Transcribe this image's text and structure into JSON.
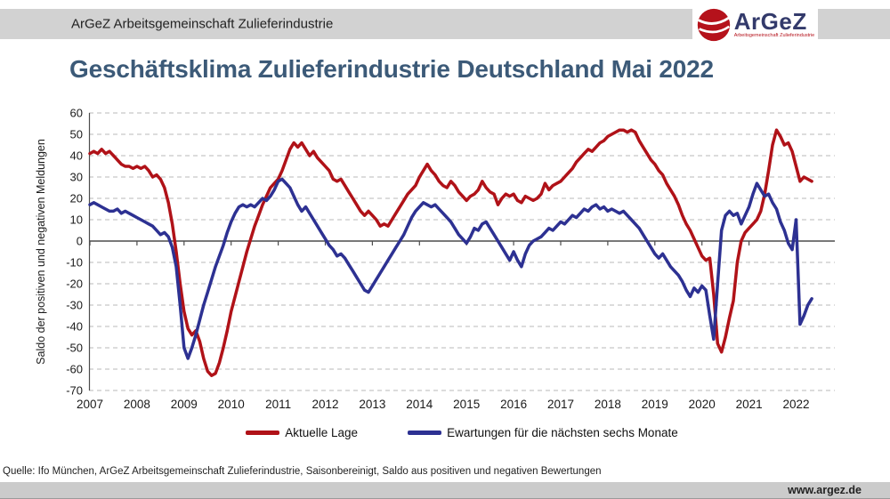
{
  "header": {
    "bar_text": "ArGeZ Arbeitsgemeinschaft Zulieferindustrie",
    "logo": {
      "name": "ArGeZ",
      "subtitle": "Arbeitsgemeinschaft Zulieferindustrie"
    }
  },
  "title": "Geschäftsklima Zulieferindustrie Deutschland Mai 2022",
  "source_line": "Quelle: Ifo München, ArGeZ Arbeitsgemeinschaft Zulieferindustrie, Saisonbereinigt, Saldo aus positiven und negativen Bewertungen",
  "footer": {
    "website": "www.argez.de"
  },
  "colors": {
    "red": "#b01218",
    "blue": "#2d3192",
    "title": "#3c5a78",
    "header_gray": "#d2d2d2",
    "grid": "#b8b8b8",
    "axis": "#4d4d4d"
  },
  "chart_data": {
    "type": "line",
    "title": "Geschäftsklima Zulieferindustrie Deutschland Mai 2022",
    "xlabel": "",
    "ylabel": "Saldo der positiven und negativen Meldungen",
    "ylim": [
      -70,
      60
    ],
    "y_ticks": [
      60,
      50,
      40,
      30,
      20,
      10,
      0,
      -10,
      -20,
      -30,
      -40,
      -50,
      -60,
      -70
    ],
    "x_start": 2007,
    "x_end_label": "Mai 2022",
    "x_ticks": [
      2007,
      2008,
      2009,
      2010,
      2011,
      2012,
      2013,
      2014,
      2015,
      2016,
      2017,
      2018,
      2019,
      2020,
      2021,
      2022
    ],
    "grid": "horizontal-dashed",
    "legend_position": "bottom",
    "series": [
      {
        "name": "Aktuelle Lage",
        "color": "#b01218",
        "monthly_values": [
          41,
          42,
          41,
          43,
          41,
          42,
          40,
          38,
          36,
          35,
          35,
          34,
          35,
          34,
          35,
          33,
          30,
          31,
          29,
          25,
          18,
          8,
          -5,
          -20,
          -33,
          -41,
          -44,
          -42,
          -47,
          -55,
          -61,
          -63,
          -62,
          -57,
          -50,
          -42,
          -33,
          -26,
          -19,
          -12,
          -5,
          1,
          7,
          12,
          17,
          21,
          25,
          27,
          29,
          33,
          38,
          43,
          46,
          44,
          46,
          43,
          40,
          42,
          39,
          37,
          35,
          33,
          29,
          28,
          29,
          26,
          23,
          20,
          17,
          14,
          12,
          14,
          12,
          10,
          7,
          8,
          7,
          10,
          13,
          16,
          19,
          22,
          24,
          26,
          30,
          33,
          36,
          33,
          31,
          28,
          26,
          25,
          28,
          26,
          23,
          21,
          19,
          21,
          22,
          24,
          28,
          25,
          23,
          22,
          17,
          20,
          22,
          21,
          22,
          19,
          18,
          21,
          20,
          19,
          20,
          22,
          27,
          24,
          26,
          27,
          28,
          30,
          32,
          34,
          37,
          39,
          41,
          43,
          42,
          44,
          46,
          47,
          49,
          50,
          51,
          52,
          52,
          51,
          52,
          51,
          47,
          44,
          41,
          38,
          36,
          33,
          31,
          27,
          24,
          21,
          17,
          12,
          8,
          5,
          1,
          -3,
          -7,
          -9,
          -8,
          -25,
          -48,
          -52,
          -45,
          -36,
          -28,
          -10,
          0,
          4,
          6,
          8,
          10,
          14,
          22,
          33,
          45,
          52,
          49,
          45,
          46,
          42,
          35,
          28,
          30,
          29,
          28
        ]
      },
      {
        "name": "Ewartungen für die nächsten sechs Monate",
        "color": "#2d3192",
        "monthly_values": [
          17,
          18,
          17,
          16,
          15,
          14,
          14,
          15,
          13,
          14,
          13,
          12,
          11,
          10,
          9,
          8,
          7,
          5,
          3,
          4,
          2,
          -3,
          -12,
          -30,
          -50,
          -55,
          -50,
          -44,
          -37,
          -30,
          -24,
          -18,
          -12,
          -7,
          -2,
          4,
          9,
          13,
          16,
          17,
          16,
          17,
          16,
          18,
          20,
          19,
          21,
          24,
          28,
          29,
          27,
          25,
          21,
          17,
          14,
          16,
          13,
          10,
          7,
          4,
          1,
          -2,
          -4,
          -7,
          -6,
          -8,
          -11,
          -14,
          -17,
          -20,
          -23,
          -24,
          -21,
          -18,
          -15,
          -12,
          -9,
          -6,
          -3,
          0,
          3,
          7,
          11,
          14,
          16,
          18,
          17,
          16,
          17,
          15,
          13,
          11,
          9,
          6,
          3,
          1,
          -1,
          2,
          6,
          5,
          8,
          9,
          6,
          3,
          0,
          -3,
          -6,
          -9,
          -5,
          -9,
          -12,
          -6,
          -2,
          0,
          1,
          2,
          4,
          6,
          5,
          7,
          9,
          8,
          10,
          12,
          11,
          13,
          15,
          14,
          16,
          17,
          15,
          16,
          14,
          15,
          14,
          13,
          14,
          12,
          10,
          8,
          6,
          3,
          0,
          -3,
          -6,
          -8,
          -6,
          -9,
          -12,
          -14,
          -16,
          -19,
          -23,
          -26,
          -22,
          -24,
          -21,
          -23,
          -35,
          -46,
          -20,
          5,
          12,
          14,
          12,
          13,
          8,
          12,
          16,
          22,
          27,
          24,
          21,
          22,
          18,
          15,
          9,
          5,
          -1,
          -4,
          10,
          -39,
          -35,
          -30,
          -27
        ]
      }
    ]
  }
}
